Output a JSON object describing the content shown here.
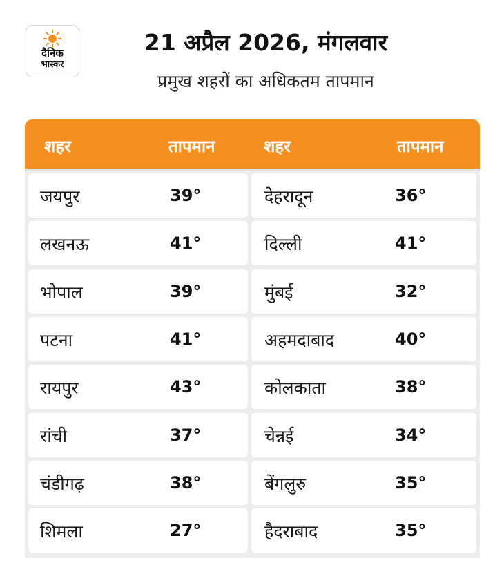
{
  "logo": {
    "line1": "दैनिक",
    "line2": "भास्कर"
  },
  "header": {
    "title": "21 अप्रैल 2026, मंगलवार",
    "subtitle": "प्रमुख शहरों का अधिकतम तापमान"
  },
  "table": {
    "headers": [
      "शहर",
      "तापमान",
      "शहर",
      "तापमान"
    ],
    "rows": [
      {
        "city1": "जयपुर",
        "temp1": "39°",
        "city2": "देहरादून",
        "temp2": "36°"
      },
      {
        "city1": "लखनऊ",
        "temp1": "41°",
        "city2": "दिल्ली",
        "temp2": "41°"
      },
      {
        "city1": "भोपाल",
        "temp1": "39°",
        "city2": "मुंबई",
        "temp2": "32°"
      },
      {
        "city1": "पटना",
        "temp1": "41°",
        "city2": "अहमदाबाद",
        "temp2": "40°"
      },
      {
        "city1": "रायपुर",
        "temp1": "43°",
        "city2": "कोलकाता",
        "temp2": "38°"
      },
      {
        "city1": "रांची",
        "temp1": "37°",
        "city2": "चेन्नई",
        "temp2": "34°"
      },
      {
        "city1": "चंडीगढ़",
        "temp1": "38°",
        "city2": "बेंगलुरु",
        "temp2": "35°"
      },
      {
        "city1": "शिमला",
        "temp1": "27°",
        "city2": "हैदराबाद",
        "temp2": "35°"
      }
    ]
  },
  "colors": {
    "accent": "#f58f1f",
    "row_bg": "#ffffff",
    "grid_bg": "#ededed"
  }
}
